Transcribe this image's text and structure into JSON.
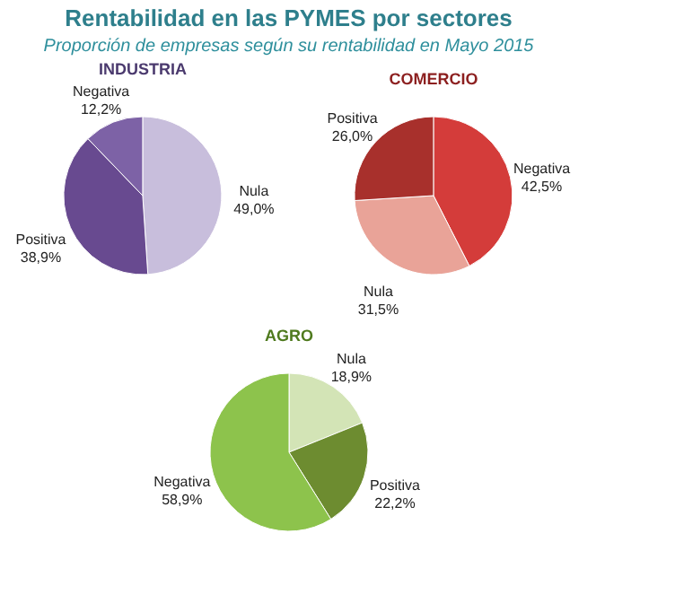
{
  "chart_data": [
    {
      "type": "pie",
      "title": "INDUSTRIA",
      "annotations": [
        "Rentabilidad en las PYMES por sectores",
        "Proporción de empresas según su rentabilidad en Mayo 2015"
      ],
      "categories": [
        "Nula",
        "Positiva",
        "Negativa"
      ],
      "values": [
        49.0,
        38.9,
        12.2
      ],
      "value_labels": [
        "49,0%",
        "38,9%",
        "12,2%"
      ],
      "colors": [
        "#c8bedc",
        "#684a90",
        "#7d62a6"
      ]
    },
    {
      "type": "pie",
      "title": "COMERCIO",
      "categories": [
        "Negativa",
        "Nula",
        "Positiva"
      ],
      "values": [
        42.5,
        31.5,
        26.0
      ],
      "value_labels": [
        "42,5%",
        "31,5%",
        "26,0%"
      ],
      "colors": [
        "#d43c3a",
        "#e9a398",
        "#a8302c"
      ]
    },
    {
      "type": "pie",
      "title": "AGRO",
      "categories": [
        "Nula",
        "Positiva",
        "Negativa"
      ],
      "values": [
        18.9,
        22.2,
        58.9
      ],
      "value_labels": [
        "18,9%",
        "22,2%",
        "58,9%"
      ],
      "colors": [
        "#d3e4b6",
        "#6d8c30",
        "#8dc34c"
      ]
    }
  ]
}
